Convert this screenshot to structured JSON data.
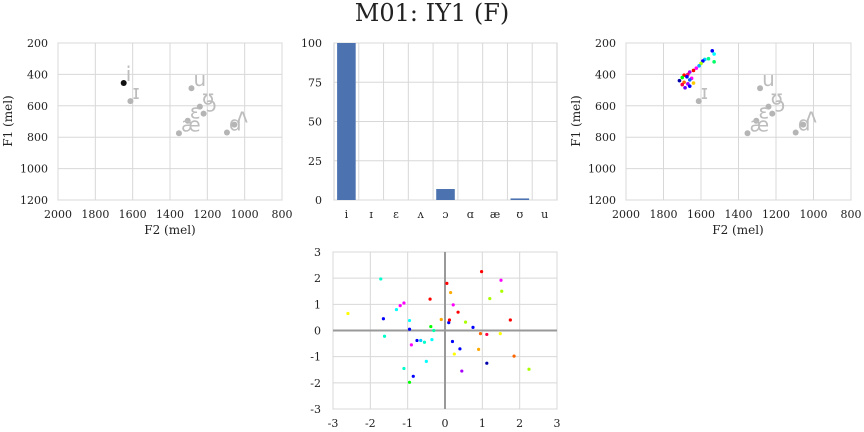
{
  "figure": {
    "title": "M01: IY1 (F)"
  },
  "chart_data": [
    {
      "id": "vowel_space_left",
      "type": "scatter",
      "xlabel": "F2 (mel)",
      "ylabel": "F1 (mel)",
      "xlim": [
        2000,
        800
      ],
      "ylim": [
        1200,
        200
      ],
      "xticks": [
        2000,
        1800,
        1600,
        1400,
        1200,
        1000,
        800
      ],
      "yticks": [
        200,
        400,
        600,
        800,
        1000,
        1200
      ],
      "grid": true,
      "vowel_means": [
        {
          "label": "i",
          "x": 1648,
          "y": 455,
          "highlight": true
        },
        {
          "label": "ɪ",
          "x": 1612,
          "y": 570
        },
        {
          "label": "u",
          "x": 1285,
          "y": 488
        },
        {
          "label": "ʊ",
          "x": 1240,
          "y": 605
        },
        {
          "label": "ɔ",
          "x": 1220,
          "y": 650
        },
        {
          "label": "ɛ",
          "x": 1305,
          "y": 695
        },
        {
          "label": "æ",
          "x": 1352,
          "y": 775
        },
        {
          "label": "ɑ",
          "x": 1095,
          "y": 770
        },
        {
          "label": "ʌ",
          "x": 1055,
          "y": 720
        }
      ]
    },
    {
      "id": "vowel_histogram",
      "type": "bar",
      "categories": [
        "i",
        "ɪ",
        "ɛ",
        "ʌ",
        "ɔ",
        "ɑ",
        "æ",
        "ʊ",
        "u"
      ],
      "values": [
        100,
        0,
        0,
        0,
        7,
        0,
        0,
        1,
        0
      ],
      "ylim": [
        0,
        100
      ],
      "yticks": [
        0,
        25,
        50,
        75,
        100
      ],
      "bar_color": "#4c72b0",
      "grid": true
    },
    {
      "id": "vowel_space_right",
      "type": "scatter",
      "xlabel": "F2 (mel)",
      "ylabel": "F1 (mel)",
      "xlim": [
        2000,
        800
      ],
      "ylim": [
        1200,
        200
      ],
      "xticks": [
        2000,
        1800,
        1600,
        1400,
        1200,
        1000,
        800
      ],
      "yticks": [
        200,
        400,
        600,
        800,
        1000,
        1200
      ],
      "grid": true,
      "vowel_means": [
        {
          "label": "ɪ",
          "x": 1612,
          "y": 570
        },
        {
          "label": "u",
          "x": 1285,
          "y": 488
        },
        {
          "label": "ʊ",
          "x": 1240,
          "y": 605
        },
        {
          "label": "ɔ",
          "x": 1220,
          "y": 650
        },
        {
          "label": "ɛ",
          "x": 1305,
          "y": 695
        },
        {
          "label": "æ",
          "x": 1352,
          "y": 775
        },
        {
          "label": "ɑ",
          "x": 1095,
          "y": 770
        },
        {
          "label": "ʌ",
          "x": 1055,
          "y": 720
        }
      ],
      "tokens": [
        {
          "x": 1540,
          "y": 250,
          "color": "#0000ff"
        },
        {
          "x": 1530,
          "y": 270,
          "color": "#00ffff"
        },
        {
          "x": 1560,
          "y": 300,
          "color": "#00ff88"
        },
        {
          "x": 1580,
          "y": 305,
          "color": "#00ccff"
        },
        {
          "x": 1590,
          "y": 315,
          "color": "#0000ff"
        },
        {
          "x": 1530,
          "y": 320,
          "color": "#00ff66"
        },
        {
          "x": 1600,
          "y": 330,
          "color": "#aaff00"
        },
        {
          "x": 1610,
          "y": 345,
          "color": "#00aaff"
        },
        {
          "x": 1625,
          "y": 360,
          "color": "#ff00ff"
        },
        {
          "x": 1640,
          "y": 375,
          "color": "#ff0000"
        },
        {
          "x": 1660,
          "y": 385,
          "color": "#aa00ff"
        },
        {
          "x": 1670,
          "y": 400,
          "color": "#ff0066"
        },
        {
          "x": 1690,
          "y": 405,
          "color": "#ff0000"
        },
        {
          "x": 1675,
          "y": 415,
          "color": "#0000ff"
        },
        {
          "x": 1700,
          "y": 420,
          "color": "#00ff00"
        },
        {
          "x": 1650,
          "y": 425,
          "color": "#ff00ff"
        },
        {
          "x": 1660,
          "y": 435,
          "color": "#0066ff"
        },
        {
          "x": 1715,
          "y": 440,
          "color": "#0000aa"
        },
        {
          "x": 1690,
          "y": 450,
          "color": "#ff6600"
        },
        {
          "x": 1640,
          "y": 455,
          "color": "#ffcc00"
        },
        {
          "x": 1670,
          "y": 460,
          "color": "#aa00ff"
        },
        {
          "x": 1700,
          "y": 465,
          "color": "#ff0044"
        },
        {
          "x": 1660,
          "y": 475,
          "color": "#0000ff"
        },
        {
          "x": 1685,
          "y": 485,
          "color": "#6600ff"
        }
      ]
    },
    {
      "id": "standardized_scatter",
      "type": "scatter",
      "xlim": [
        -3,
        3
      ],
      "ylim": [
        -3,
        3
      ],
      "xticks": [
        -3,
        -2,
        -1,
        0,
        1,
        2,
        3
      ],
      "yticks": [
        -3,
        -2,
        -1,
        0,
        1,
        2,
        3
      ],
      "grid": true,
      "zero_lines": true,
      "points": [
        {
          "x": -1.72,
          "y": 1.97,
          "color": "#00ffcc"
        },
        {
          "x": -2.6,
          "y": 0.65,
          "color": "#ffff00"
        },
        {
          "x": -1.65,
          "y": 0.45,
          "color": "#0000ff"
        },
        {
          "x": -1.62,
          "y": -0.22,
          "color": "#00ffcc"
        },
        {
          "x": -1.2,
          "y": 0.95,
          "color": "#ff00ff"
        },
        {
          "x": -1.3,
          "y": 0.8,
          "color": "#00ffff"
        },
        {
          "x": -1.1,
          "y": 1.05,
          "color": "#ff00ff"
        },
        {
          "x": -0.95,
          "y": 0.38,
          "color": "#00ffff"
        },
        {
          "x": -0.95,
          "y": 0.05,
          "color": "#0000ff"
        },
        {
          "x": -0.9,
          "y": -0.55,
          "color": "#ff00ff"
        },
        {
          "x": -0.75,
          "y": -0.38,
          "color": "#0000ff"
        },
        {
          "x": -0.65,
          "y": -0.38,
          "color": "#00ccff"
        },
        {
          "x": -0.55,
          "y": -0.45,
          "color": "#00ffcc"
        },
        {
          "x": -0.5,
          "y": -1.18,
          "color": "#00ffff"
        },
        {
          "x": -0.4,
          "y": 1.2,
          "color": "#ff0000"
        },
        {
          "x": -0.38,
          "y": 0.15,
          "color": "#00ff00"
        },
        {
          "x": -0.35,
          "y": -0.35,
          "color": "#00ffff"
        },
        {
          "x": -0.3,
          "y": 0.0,
          "color": "#00ffaa"
        },
        {
          "x": -1.1,
          "y": -1.45,
          "color": "#00ffcc"
        },
        {
          "x": -0.85,
          "y": -1.75,
          "color": "#0000ff"
        },
        {
          "x": -0.95,
          "y": -1.98,
          "color": "#00ff00"
        },
        {
          "x": -0.1,
          "y": 0.42,
          "color": "#ffaa00"
        },
        {
          "x": 0.05,
          "y": 1.8,
          "color": "#ff0000"
        },
        {
          "x": 0.1,
          "y": 0.3,
          "color": "#0000ff"
        },
        {
          "x": 0.12,
          "y": 0.4,
          "color": "#ff0000"
        },
        {
          "x": 0.15,
          "y": 1.45,
          "color": "#ffaa00"
        },
        {
          "x": 0.2,
          "y": -0.42,
          "color": "#0000ff"
        },
        {
          "x": 0.22,
          "y": 0.98,
          "color": "#ff00ff"
        },
        {
          "x": 0.25,
          "y": -0.9,
          "color": "#ffff00"
        },
        {
          "x": 0.35,
          "y": 0.7,
          "color": "#ff0000"
        },
        {
          "x": 0.4,
          "y": -0.7,
          "color": "#0000ff"
        },
        {
          "x": 0.45,
          "y": -1.55,
          "color": "#aa00ff"
        },
        {
          "x": 0.55,
          "y": 0.32,
          "color": "#aaff00"
        },
        {
          "x": 0.75,
          "y": 0.12,
          "color": "#0000ff"
        },
        {
          "x": 0.9,
          "y": -0.72,
          "color": "#ffaa00"
        },
        {
          "x": 0.95,
          "y": -0.12,
          "color": "#ff6600"
        },
        {
          "x": 0.98,
          "y": 2.25,
          "color": "#ff0000"
        },
        {
          "x": 1.12,
          "y": -0.15,
          "color": "#ff0044"
        },
        {
          "x": 1.12,
          "y": -1.25,
          "color": "#0000aa"
        },
        {
          "x": 1.2,
          "y": 1.22,
          "color": "#aaff00"
        },
        {
          "x": 1.48,
          "y": -0.12,
          "color": "#ffff00"
        },
        {
          "x": 1.5,
          "y": 1.92,
          "color": "#ff00ff"
        },
        {
          "x": 1.52,
          "y": 1.5,
          "color": "#aaff00"
        },
        {
          "x": 1.75,
          "y": 0.4,
          "color": "#ff0000"
        },
        {
          "x": 1.85,
          "y": -0.98,
          "color": "#ff6600"
        },
        {
          "x": 2.25,
          "y": -1.48,
          "color": "#aaff00"
        }
      ]
    }
  ]
}
